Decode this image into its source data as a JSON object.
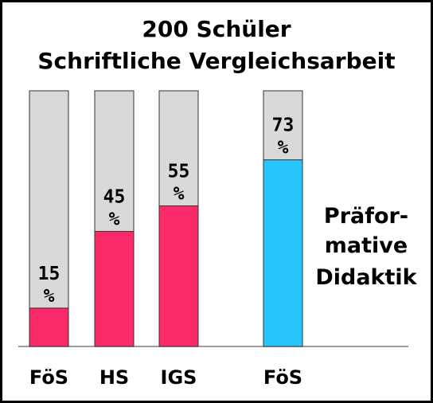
{
  "chart_data": {
    "type": "bar",
    "title": "200 Schüler",
    "subtitle": "Schriftliche Vergleichsarbeit",
    "categories": [
      "FöS",
      "HS",
      "IGS",
      "FöS"
    ],
    "values": [
      15,
      45,
      55,
      73
    ],
    "value_labels": [
      "15 %",
      "45 %",
      "55 %",
      "73 %"
    ],
    "ylim": [
      0,
      100
    ],
    "bar_colors": [
      "#fb2a68",
      "#fb2a68",
      "#fb2a68",
      "#26c6fb"
    ],
    "track_color": "#d9d9d9",
    "annotation_lines": [
      "Präfor-",
      "mative",
      "Didaktik"
    ],
    "grid": false
  }
}
